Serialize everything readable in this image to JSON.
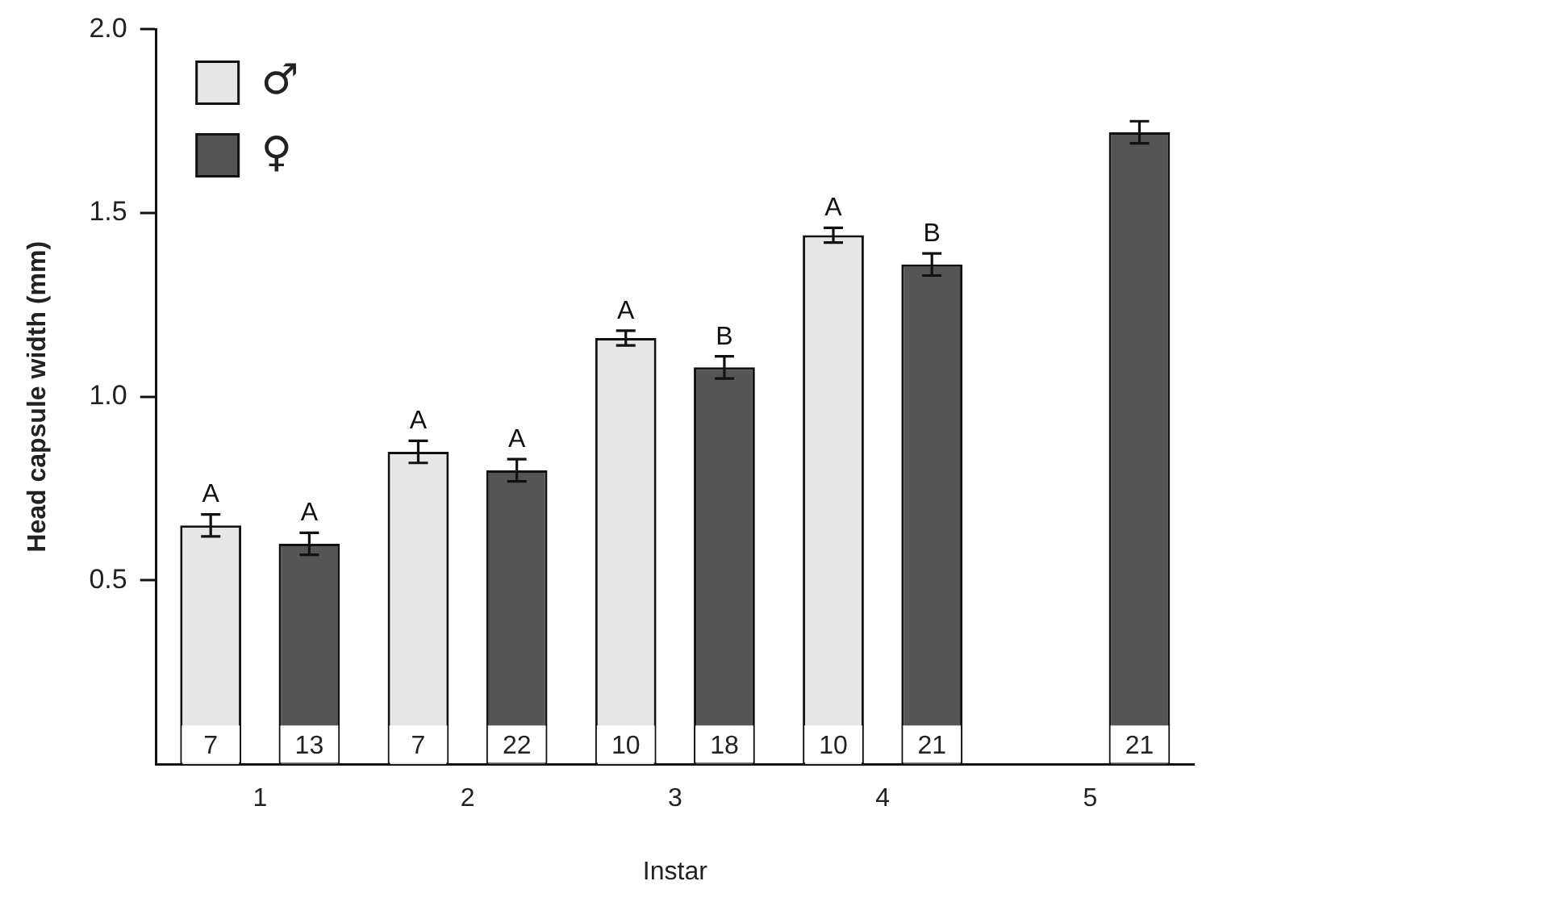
{
  "chart_data": {
    "type": "bar",
    "xlabel": "Instar",
    "ylabel": "Head capsule width (mm)",
    "categories": [
      "1",
      "2",
      "3",
      "4",
      "5"
    ],
    "series": [
      {
        "name": "♂",
        "color": "#e6e6e6",
        "values": [
          0.65,
          0.85,
          1.16,
          1.44,
          null
        ],
        "errors": [
          0.03,
          0.03,
          0.02,
          0.02,
          null
        ],
        "value_labels": [
          "A",
          "A",
          "A",
          "A",
          null
        ]
      },
      {
        "name": "♀",
        "color": "#555555",
        "values": [
          0.6,
          0.8,
          1.08,
          1.36,
          1.72
        ],
        "errors": [
          0.03,
          0.03,
          0.03,
          0.03,
          0.03
        ],
        "value_labels": [
          "A",
          "A",
          "B",
          "B",
          null
        ]
      }
    ],
    "ylim": [
      0,
      2.0
    ],
    "yticks": [
      {
        "value": 0.5,
        "label": "0.5"
      },
      {
        "value": 1,
        "label": "1.0"
      },
      {
        "value": 1.5,
        "label": "1.5"
      },
      {
        "value": 2,
        "label": "2.0"
      }
    ],
    "grid": false,
    "legend": "top left",
    "annotations": [
      "7",
      "13",
      "7",
      "22",
      "10",
      "18",
      "10",
      "21",
      "21"
    ]
  }
}
